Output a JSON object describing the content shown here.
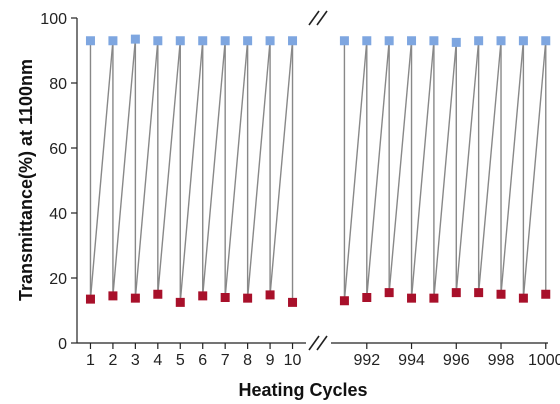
{
  "chart_data": {
    "type": "line",
    "xlabel": "Heating Cycles",
    "ylabel": "Transmittance(%) at 1100nm",
    "ylim": [
      0,
      100
    ],
    "yticks": [
      0,
      20,
      40,
      60,
      80,
      100
    ],
    "axis_break": "between 10 and 991 (//)",
    "segments": [
      {
        "xlim": [
          0.4,
          10.6
        ],
        "x": [
          1,
          2,
          3,
          4,
          5,
          6,
          7,
          8,
          9,
          10
        ],
        "tick_labels": [
          "1",
          "2",
          "3",
          "4",
          "5",
          "6",
          "7",
          "8",
          "9",
          "10"
        ],
        "high": [
          93.0,
          93.0,
          93.5,
          93.0,
          93.0,
          93.0,
          93.0,
          93.0,
          93.0,
          93.0
        ],
        "low": [
          13.5,
          14.5,
          13.8,
          15.0,
          12.5,
          14.5,
          14.0,
          13.8,
          14.8,
          12.5
        ]
      },
      {
        "xlim": [
          990.4,
          1000.1
        ],
        "x": [
          991,
          992,
          993,
          994,
          995,
          996,
          997,
          998,
          999,
          1000
        ],
        "tick_labels": [
          "992",
          "994",
          "996",
          "998",
          "1000"
        ],
        "tick_values": [
          992,
          994,
          996,
          998,
          1000
        ],
        "high": [
          93.0,
          93.0,
          93.0,
          93.0,
          93.0,
          92.5,
          93.0,
          93.0,
          93.0,
          93.0
        ],
        "low": [
          13.0,
          14.0,
          15.5,
          13.8,
          13.8,
          15.5,
          15.5,
          15.0,
          13.8,
          15.0
        ]
      }
    ],
    "colors": {
      "high_marker": "#7ea6e0",
      "low_marker": "#a8102a",
      "line": "#888888",
      "axis": "#222222"
    }
  }
}
